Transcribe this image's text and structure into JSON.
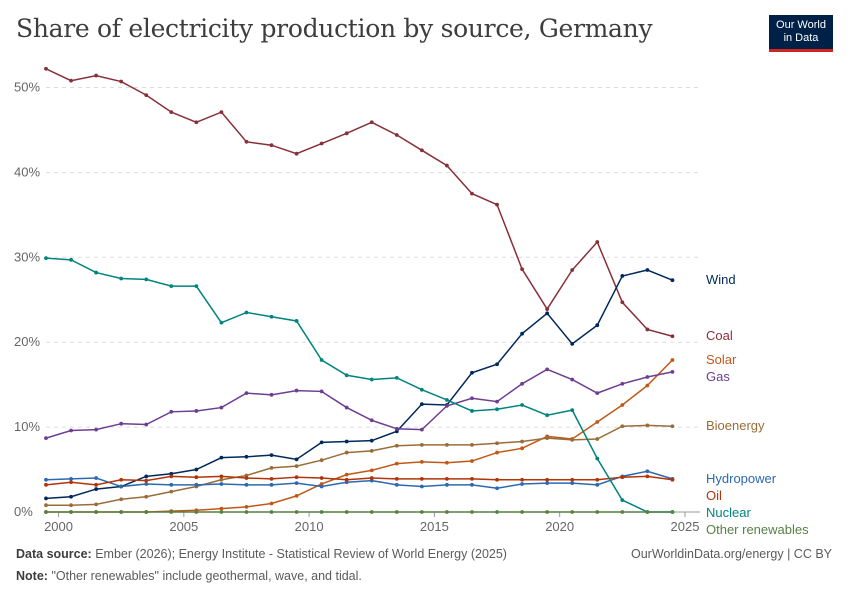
{
  "header": {
    "title": "Share of electricity production by source, Germany",
    "logo_line1": "Our World",
    "logo_line2": "in Data"
  },
  "footer": {
    "source_label": "Data source:",
    "source_text": "Ember (2026); Energy Institute - Statistical Review of World Energy (2025)",
    "note_label": "Note:",
    "note_text": "\"Other renewables\" include geothermal, wave, and tidal.",
    "right_text": "OurWorldinData.org/energy | CC BY"
  },
  "chart_data": {
    "type": "line",
    "title": "Share of electricity production by source, Germany",
    "xlabel": "",
    "ylabel": "",
    "xlim": [
      1999.5,
      2025.6
    ],
    "ylim": [
      0,
      53
    ],
    "x_ticks": [
      2000,
      2005,
      2010,
      2015,
      2020,
      2025
    ],
    "y_ticks": [
      0,
      10,
      20,
      30,
      40,
      50
    ],
    "y_tick_labels": [
      "0%",
      "10%",
      "20%",
      "30%",
      "40%",
      "50%"
    ],
    "grid": "horizontal dashed",
    "legend": "labels at line ends (right)",
    "x": [
      1999.5,
      2000.5,
      2001.5,
      2002.5,
      2003.5,
      2004.5,
      2005.5,
      2006.5,
      2007.5,
      2008.5,
      2009.5,
      2010.5,
      2011.5,
      2012.5,
      2013.5,
      2014.5,
      2015.5,
      2016.5,
      2017.5,
      2018.5,
      2019.5,
      2020.5,
      2021.5,
      2022.5,
      2023.5,
      2024.5,
      2025.5
    ],
    "series": [
      {
        "name": "Coal",
        "color": "#883039",
        "values": [
          52.2,
          50.8,
          51.4,
          50.7,
          49.1,
          47.1,
          45.9,
          47.1,
          43.6,
          43.2,
          42.2,
          43.4,
          44.6,
          45.9,
          44.4,
          42.6,
          40.8,
          37.5,
          36.2,
          28.6,
          23.9,
          28.5,
          31.8,
          24.7,
          21.5,
          20.7,
          null
        ]
      },
      {
        "name": "Wind",
        "color": "#00295b",
        "values": [
          1.6,
          1.8,
          2.7,
          3.0,
          4.2,
          4.5,
          5.0,
          6.4,
          6.5,
          6.7,
          6.2,
          8.2,
          8.3,
          8.4,
          9.5,
          12.7,
          12.6,
          16.4,
          17.4,
          21.0,
          23.4,
          19.8,
          22.0,
          27.8,
          28.5,
          27.3,
          null
        ]
      },
      {
        "name": "Solar",
        "color": "#c05917",
        "values": [
          0.0,
          0.0,
          0.0,
          0.0,
          0.0,
          0.1,
          0.2,
          0.4,
          0.6,
          1.0,
          1.9,
          3.3,
          4.4,
          4.9,
          5.7,
          5.9,
          5.8,
          6.0,
          7.0,
          7.5,
          8.9,
          8.6,
          10.6,
          12.6,
          14.9,
          17.9,
          null
        ]
      },
      {
        "name": "Gas",
        "color": "#6d3e91",
        "values": [
          8.7,
          9.6,
          9.7,
          10.4,
          10.3,
          11.8,
          11.9,
          12.3,
          14.0,
          13.8,
          14.3,
          14.2,
          12.3,
          10.8,
          9.8,
          9.7,
          12.5,
          13.4,
          13.0,
          15.1,
          16.8,
          15.6,
          14.0,
          15.1,
          15.9,
          16.5,
          null
        ]
      },
      {
        "name": "Bioenergy",
        "color": "#996d39",
        "values": [
          0.8,
          0.8,
          0.9,
          1.5,
          1.8,
          2.4,
          3.0,
          3.8,
          4.3,
          5.2,
          5.4,
          6.1,
          7.0,
          7.2,
          7.8,
          7.9,
          7.9,
          7.9,
          8.1,
          8.3,
          8.7,
          8.5,
          8.6,
          10.1,
          10.2,
          10.1,
          null
        ]
      },
      {
        "name": "Hydropower",
        "color": "#2c69b0",
        "values": [
          3.8,
          3.9,
          4.0,
          3.0,
          3.3,
          3.2,
          3.2,
          3.3,
          3.2,
          3.2,
          3.4,
          3.0,
          3.5,
          3.7,
          3.2,
          3.0,
          3.2,
          3.2,
          2.8,
          3.3,
          3.4,
          3.4,
          3.2,
          4.2,
          4.8,
          3.9,
          null
        ]
      },
      {
        "name": "Oil",
        "color": "#b13507",
        "values": [
          3.2,
          3.5,
          3.2,
          3.8,
          3.7,
          4.2,
          4.1,
          4.2,
          4.0,
          3.9,
          4.1,
          4.0,
          3.8,
          4.0,
          3.9,
          3.9,
          3.9,
          3.9,
          3.8,
          3.8,
          3.8,
          3.8,
          3.8,
          4.1,
          4.2,
          3.8,
          null
        ]
      },
      {
        "name": "Nuclear",
        "color": "#00847e",
        "values": [
          29.9,
          29.7,
          28.2,
          27.5,
          27.4,
          26.6,
          26.6,
          22.3,
          23.5,
          23.0,
          22.5,
          17.9,
          16.1,
          15.6,
          15.8,
          14.4,
          13.2,
          11.9,
          12.1,
          12.6,
          11.4,
          12.0,
          6.3,
          1.4,
          0.0,
          0.0,
          null
        ]
      },
      {
        "name": "Other renewables",
        "color": "#578145",
        "values": [
          0.0,
          0.0,
          0.0,
          0.0,
          0.0,
          0.0,
          0.0,
          0.0,
          0.0,
          0.0,
          0.0,
          0.0,
          0.0,
          0.0,
          0.0,
          0.0,
          0.0,
          0.0,
          0.0,
          0.0,
          0.0,
          0.0,
          0.0,
          0.0,
          0.0,
          0.0,
          null
        ]
      }
    ],
    "end_labels": [
      {
        "series": "Wind",
        "text": "Wind",
        "color": "#00295b"
      },
      {
        "series": "Coal",
        "text": "Coal",
        "color": "#883039"
      },
      {
        "series": "Solar",
        "text": "Solar",
        "color": "#c05917"
      },
      {
        "series": "Gas",
        "text": "Gas",
        "color": "#6d3e91"
      },
      {
        "series": "Bioenergy",
        "text": "Bioenergy",
        "color": "#996d39"
      },
      {
        "series": "Hydropower",
        "text": "Hydropower",
        "color": "#2c69b0"
      },
      {
        "series": "Oil",
        "text": "Oil",
        "color": "#b13507"
      },
      {
        "series": "Nuclear",
        "text": "Nuclear",
        "color": "#00847e"
      },
      {
        "series": "Other renewables",
        "text": "Other renewables",
        "color": "#578145"
      }
    ]
  }
}
